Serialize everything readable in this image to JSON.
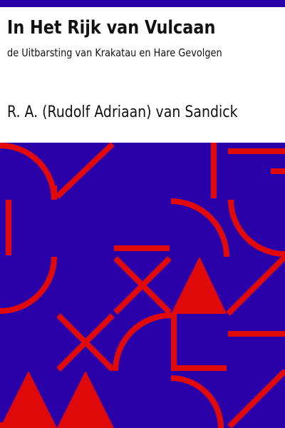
{
  "book": {
    "title": "In Het Rijk van Vulcaan",
    "subtitle": "de Uitbarsting van Krakatau en Hare Gevolgen",
    "author": "R. A. (Rudolf Adriaan) van Sandick"
  },
  "colors": {
    "band": "#2a00a8",
    "pattern_background": "#2a00a8",
    "pattern_shapes": "#e00a0a",
    "text": "#111111",
    "page": "#ffffff"
  }
}
